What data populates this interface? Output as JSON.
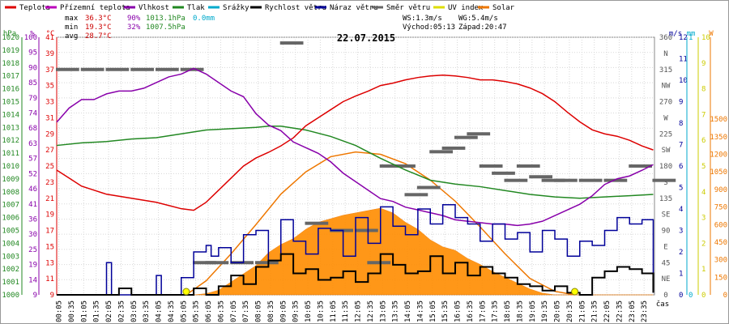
{
  "chart_data": {
    "type": "line",
    "title": "22.07.2015",
    "xlabel": "čas",
    "time_ticks": [
      "00:05",
      "00:35",
      "01:05",
      "01:35",
      "02:05",
      "02:35",
      "03:05",
      "03:35",
      "04:05",
      "04:35",
      "05:05",
      "05:35",
      "06:05",
      "06:35",
      "07:05",
      "07:35",
      "08:05",
      "08:35",
      "09:05",
      "09:35",
      "10:05",
      "10:35",
      "11:05",
      "11:35",
      "12:05",
      "12:35",
      "13:05",
      "13:35",
      "14:05",
      "14:35",
      "15:05",
      "15:35",
      "16:05",
      "16:35",
      "17:05",
      "17:35",
      "18:05",
      "18:35",
      "19:05",
      "19:35",
      "20:05",
      "20:35",
      "21:05",
      "21:35",
      "22:05",
      "22:35",
      "23:05",
      "23:35"
    ],
    "legend": [
      {
        "key": "temp",
        "label": "Teplota",
        "color": "#dd0000"
      },
      {
        "key": "feels",
        "label": "Přízemní teplota",
        "color": "#bb00bb"
      },
      {
        "key": "hum",
        "label": "Vlhkost",
        "color": "#8800aa"
      },
      {
        "key": "press",
        "label": "Tlak",
        "color": "#228822"
      },
      {
        "key": "rain",
        "label": "Srážky",
        "color": "#00aacc"
      },
      {
        "key": "ws",
        "label": "Rychlost větru",
        "color": "#000000"
      },
      {
        "key": "gust",
        "label": "Náraz větru",
        "color": "#000099"
      },
      {
        "key": "dir",
        "label": "Směr větru",
        "color": "#666666"
      },
      {
        "key": "uv",
        "label": "UV index",
        "color": "#dddd00"
      },
      {
        "key": "solar",
        "label": "Solar",
        "color": "#ee7700"
      }
    ],
    "stats": {
      "max_label": "max",
      "max_temp": "36.3°C",
      "max_hum": "90%",
      "max_press": "1013.1hPa",
      "max_rain": "0.0mm",
      "min_label": "min",
      "min_temp": "19.3°C",
      "min_hum": "32%",
      "min_press": "1007.5hPa",
      "avg_label": "avg",
      "avg_temp": "28.7°C",
      "ws": "WS:1.3m/s",
      "wg": "WG:5.4m/s",
      "sunrise": "Východ:05:13",
      "sunset": "Západ:20:47"
    },
    "axes": {
      "hpa": {
        "unit": "hPa",
        "range": [
          1000,
          1020
        ],
        "ticks": [
          "1020",
          "1019",
          "1018",
          "1017",
          "1016",
          "1015",
          "1014",
          "1013",
          "1012",
          "1011",
          "1010",
          "1009",
          "1008",
          "1007",
          "1006",
          "1005",
          "1004",
          "1003",
          "1002",
          "1001",
          "1000"
        ]
      },
      "pct": {
        "unit": "%",
        "range": [
          9,
          100
        ],
        "ticks": [
          "100",
          "95",
          "90",
          "85",
          "79",
          "74",
          "68",
          "63",
          "57",
          "52",
          "46",
          "41",
          "36",
          "30",
          "25",
          "19",
          "14",
          "9"
        ]
      },
      "temp": {
        "unit": "°C",
        "range": [
          9,
          41
        ],
        "ticks": [
          "41",
          "39",
          "37",
          "35",
          "33",
          "31",
          "29",
          "27",
          "25",
          "23",
          "21",
          "19",
          "17",
          "15",
          "13",
          "11",
          "9"
        ]
      },
      "dir": {
        "ticks": [
          "360",
          "N",
          "315",
          "NW",
          "270",
          "W",
          "225",
          "SW",
          "180",
          "S",
          "135",
          "SE",
          "90",
          "E",
          "45",
          "NE",
          "0"
        ]
      },
      "ms": {
        "unit": "m/s",
        "range": [
          0,
          12
        ],
        "ticks": [
          "12",
          "11",
          "10",
          "9",
          "8",
          "7",
          "6",
          "5",
          "4",
          "3",
          "2",
          "1",
          "0"
        ]
      },
      "mm": {
        "unit": "mm",
        "range": [
          0,
          1
        ],
        "ticks": [
          "1",
          "0"
        ]
      },
      "uv": {
        "range": [
          0,
          10
        ],
        "ticks": [
          "10",
          "9",
          "8",
          "7",
          "6",
          "5",
          "4",
          "3",
          "2",
          "1",
          "0"
        ]
      },
      "w": {
        "unit": "W",
        "range": [
          0,
          1500
        ],
        "ticks": [
          "1500",
          "1350",
          "1200",
          "1050",
          "900",
          "750",
          "600",
          "450",
          "300",
          "150",
          "0"
        ]
      }
    },
    "series": {
      "temp": [
        [
          0,
          24.5
        ],
        [
          0.5,
          23.5
        ],
        [
          1,
          22.5
        ],
        [
          1.5,
          22
        ],
        [
          2,
          21.5
        ],
        [
          3,
          21
        ],
        [
          4,
          20.5
        ],
        [
          5,
          19.7
        ],
        [
          5.5,
          19.5
        ],
        [
          6,
          20.5
        ],
        [
          6.5,
          22
        ],
        [
          7,
          23.5
        ],
        [
          7.5,
          25
        ],
        [
          8,
          26
        ],
        [
          8.5,
          26.7
        ],
        [
          9,
          27.5
        ],
        [
          9.5,
          28.5
        ],
        [
          10,
          30
        ],
        [
          10.5,
          31
        ],
        [
          11,
          32
        ],
        [
          11.5,
          33
        ],
        [
          12,
          33.7
        ],
        [
          12.5,
          34.3
        ],
        [
          13,
          35
        ],
        [
          13.5,
          35.3
        ],
        [
          14,
          35.7
        ],
        [
          14.5,
          36
        ],
        [
          15,
          36.2
        ],
        [
          15.5,
          36.3
        ],
        [
          16,
          36.2
        ],
        [
          16.5,
          36
        ],
        [
          17,
          35.7
        ],
        [
          17.5,
          35.7
        ],
        [
          18,
          35.5
        ],
        [
          18.5,
          35.2
        ],
        [
          19,
          34.7
        ],
        [
          19.5,
          34
        ],
        [
          20,
          33
        ],
        [
          20.5,
          31.7
        ],
        [
          21,
          30.5
        ],
        [
          21.5,
          29.5
        ],
        [
          22,
          29
        ],
        [
          22.5,
          28.7
        ],
        [
          23,
          28.2
        ],
        [
          23.5,
          27.5
        ],
        [
          23.95,
          27
        ]
      ],
      "hum": [
        [
          0,
          70
        ],
        [
          0.5,
          75
        ],
        [
          1,
          78
        ],
        [
          1.5,
          78
        ],
        [
          2,
          80
        ],
        [
          2.5,
          81
        ],
        [
          3,
          81
        ],
        [
          3.5,
          82
        ],
        [
          4,
          84
        ],
        [
          4.5,
          86
        ],
        [
          5,
          87
        ],
        [
          5.5,
          89
        ],
        [
          6,
          87
        ],
        [
          6.5,
          84
        ],
        [
          7,
          81
        ],
        [
          7.5,
          79
        ],
        [
          8,
          73
        ],
        [
          8.5,
          69
        ],
        [
          9,
          67
        ],
        [
          9.5,
          63
        ],
        [
          10,
          61
        ],
        [
          10.5,
          59
        ],
        [
          11,
          56
        ],
        [
          11.5,
          52
        ],
        [
          12,
          49
        ],
        [
          12.5,
          46
        ],
        [
          13,
          43
        ],
        [
          13.5,
          42
        ],
        [
          14,
          40
        ],
        [
          14.5,
          39
        ],
        [
          15,
          38
        ],
        [
          15.5,
          37
        ],
        [
          16,
          35.5
        ],
        [
          16.5,
          35
        ],
        [
          17,
          34.5
        ],
        [
          17.5,
          34
        ],
        [
          18,
          34
        ],
        [
          18.5,
          33.5
        ],
        [
          19,
          34
        ],
        [
          19.5,
          35
        ],
        [
          20,
          37
        ],
        [
          20.5,
          39
        ],
        [
          21,
          41
        ],
        [
          21.5,
          44
        ],
        [
          22,
          48
        ],
        [
          22.5,
          50
        ],
        [
          23,
          51
        ],
        [
          23.5,
          53
        ],
        [
          23.95,
          55
        ]
      ],
      "press": [
        [
          0,
          1011.6
        ],
        [
          1,
          1011.8
        ],
        [
          2,
          1011.9
        ],
        [
          3,
          1012.1
        ],
        [
          4,
          1012.2
        ],
        [
          5,
          1012.5
        ],
        [
          6,
          1012.8
        ],
        [
          7,
          1012.9
        ],
        [
          8,
          1013.0
        ],
        [
          8.5,
          1013.1
        ],
        [
          9,
          1013.1
        ],
        [
          10,
          1012.8
        ],
        [
          11,
          1012.3
        ],
        [
          12,
          1011.6
        ],
        [
          13,
          1010.6
        ],
        [
          14,
          1009.7
        ],
        [
          15,
          1008.9
        ],
        [
          16,
          1008.6
        ],
        [
          17,
          1008.4
        ],
        [
          18,
          1008.1
        ],
        [
          19,
          1007.8
        ],
        [
          20,
          1007.6
        ],
        [
          21,
          1007.5
        ],
        [
          22,
          1007.6
        ],
        [
          23,
          1007.7
        ],
        [
          23.95,
          1007.8
        ]
      ],
      "ws": [
        [
          0,
          0
        ],
        [
          2,
          0
        ],
        [
          2.5,
          0.3
        ],
        [
          3,
          0
        ],
        [
          5,
          0
        ],
        [
          5.5,
          0.3
        ],
        [
          6,
          0
        ],
        [
          6.5,
          0.4
        ],
        [
          7,
          0.9
        ],
        [
          7.5,
          0.5
        ],
        [
          8,
          1.3
        ],
        [
          8.5,
          1.6
        ],
        [
          9,
          1.9
        ],
        [
          9.5,
          1.0
        ],
        [
          10,
          1.2
        ],
        [
          10.5,
          0.7
        ],
        [
          11,
          0.8
        ],
        [
          11.5,
          1.1
        ],
        [
          12,
          0.6
        ],
        [
          12.5,
          1.0
        ],
        [
          13,
          1.9
        ],
        [
          13.5,
          1.4
        ],
        [
          14,
          1.0
        ],
        [
          14.5,
          1.1
        ],
        [
          15,
          1.8
        ],
        [
          15.5,
          1.0
        ],
        [
          16,
          1.5
        ],
        [
          16.5,
          0.9
        ],
        [
          17,
          1.3
        ],
        [
          17.5,
          1.0
        ],
        [
          18,
          0.8
        ],
        [
          18.5,
          0.5
        ],
        [
          19,
          0.4
        ],
        [
          19.5,
          0.2
        ],
        [
          20,
          0.4
        ],
        [
          20.5,
          0.1
        ],
        [
          21,
          0
        ],
        [
          21.5,
          0.8
        ],
        [
          22,
          1.1
        ],
        [
          22.5,
          1.3
        ],
        [
          23,
          1.2
        ],
        [
          23.5,
          1.0
        ],
        [
          23.95,
          0.1
        ]
      ],
      "gust": [
        [
          0,
          0
        ],
        [
          1.9,
          0
        ],
        [
          2,
          1.5
        ],
        [
          2.2,
          0
        ],
        [
          3.9,
          0
        ],
        [
          4,
          0.9
        ],
        [
          4.2,
          0
        ],
        [
          5,
          0.8
        ],
        [
          5.5,
          2.0
        ],
        [
          6,
          2.3
        ],
        [
          6.2,
          1.8
        ],
        [
          6.5,
          2.2
        ],
        [
          7,
          1.5
        ],
        [
          7.5,
          2.8
        ],
        [
          8,
          3.0
        ],
        [
          8.5,
          1.6
        ],
        [
          9,
          3.5
        ],
        [
          9.5,
          2.5
        ],
        [
          10,
          1.9
        ],
        [
          10.5,
          3.1
        ],
        [
          11,
          3.0
        ],
        [
          11.5,
          1.8
        ],
        [
          12,
          3.6
        ],
        [
          12.5,
          2.4
        ],
        [
          13,
          4.1
        ],
        [
          13.5,
          3.2
        ],
        [
          14,
          2.8
        ],
        [
          14.5,
          4.0
        ],
        [
          15,
          3.3
        ],
        [
          15.5,
          4.2
        ],
        [
          16,
          3.6
        ],
        [
          16.5,
          3.3
        ],
        [
          17,
          2.5
        ],
        [
          17.5,
          3.3
        ],
        [
          18,
          2.6
        ],
        [
          18.5,
          2.9
        ],
        [
          19,
          2.0
        ],
        [
          19.5,
          3.0
        ],
        [
          20,
          2.6
        ],
        [
          20.5,
          1.8
        ],
        [
          21,
          2.5
        ],
        [
          21.5,
          2.3
        ],
        [
          22,
          3.0
        ],
        [
          22.5,
          3.6
        ],
        [
          23,
          3.3
        ],
        [
          23.5,
          3.5
        ],
        [
          23.95,
          0.1
        ]
      ],
      "solar": [
        [
          0,
          0
        ],
        [
          5.5,
          0
        ],
        [
          6,
          10
        ],
        [
          6.5,
          40
        ],
        [
          7,
          110
        ],
        [
          7.5,
          180
        ],
        [
          8,
          250
        ],
        [
          8.5,
          360
        ],
        [
          9,
          430
        ],
        [
          9.5,
          480
        ],
        [
          10,
          560
        ],
        [
          10.5,
          620
        ],
        [
          11,
          650
        ],
        [
          11.5,
          680
        ],
        [
          12,
          700
        ],
        [
          12.5,
          720
        ],
        [
          13,
          740
        ],
        [
          13.5,
          700
        ],
        [
          14,
          620
        ],
        [
          14.5,
          560
        ],
        [
          15,
          470
        ],
        [
          15.5,
          410
        ],
        [
          16,
          380
        ],
        [
          16.5,
          310
        ],
        [
          17,
          260
        ],
        [
          17.5,
          200
        ],
        [
          18,
          150
        ],
        [
          18.5,
          100
        ],
        [
          19,
          50
        ],
        [
          19.5,
          15
        ],
        [
          20,
          0
        ],
        [
          23.95,
          0
        ]
      ],
      "solar_clear": [
        [
          5.2,
          0
        ],
        [
          6,
          120
        ],
        [
          7,
          350
        ],
        [
          8,
          600
        ],
        [
          9,
          860
        ],
        [
          10,
          1050
        ],
        [
          11,
          1180
        ],
        [
          12,
          1220
        ],
        [
          13,
          1200
        ],
        [
          14,
          1120
        ],
        [
          15,
          980
        ],
        [
          16,
          800
        ],
        [
          17,
          580
        ],
        [
          18,
          350
        ],
        [
          19,
          140
        ],
        [
          20,
          30
        ],
        [
          20.8,
          0
        ]
      ],
      "dir_points": [
        [
          0,
          315
        ],
        [
          1,
          315
        ],
        [
          2,
          315
        ],
        [
          3,
          315
        ],
        [
          4,
          315
        ],
        [
          5,
          315
        ],
        [
          5.5,
          45
        ],
        [
          6,
          45
        ],
        [
          7,
          45
        ],
        [
          8,
          45
        ],
        [
          9,
          352
        ],
        [
          10,
          100
        ],
        [
          11,
          90
        ],
        [
          12,
          90
        ],
        [
          12.5,
          45
        ],
        [
          13,
          180
        ],
        [
          13.5,
          180
        ],
        [
          14,
          140
        ],
        [
          14.5,
          150
        ],
        [
          15,
          200
        ],
        [
          15.5,
          205
        ],
        [
          16,
          220
        ],
        [
          16.5,
          225
        ],
        [
          17,
          180
        ],
        [
          17.5,
          170
        ],
        [
          18,
          160
        ],
        [
          18.5,
          180
        ],
        [
          19,
          165
        ],
        [
          19.5,
          160
        ],
        [
          20,
          160
        ],
        [
          21,
          160
        ],
        [
          22,
          160
        ],
        [
          23,
          180
        ],
        [
          23.95,
          160
        ]
      ],
      "uv_markers": [
        [
          5.2,
          0
        ],
        [
          20.8,
          0
        ]
      ]
    }
  }
}
